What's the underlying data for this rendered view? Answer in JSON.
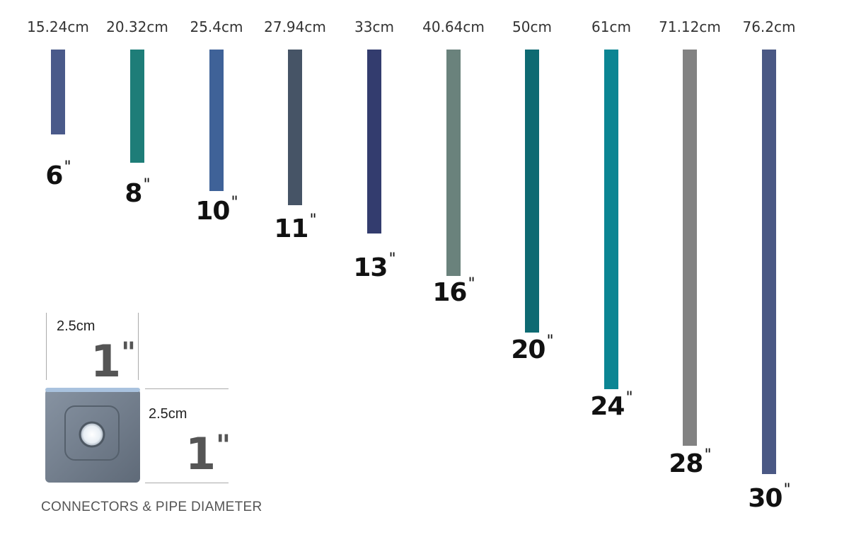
{
  "pipes": [
    {
      "cm": "15.24cm",
      "inches": "6",
      "length_in": 6,
      "color": "#4a5a8a"
    },
    {
      "cm": "20.32cm",
      "inches": "8",
      "length_in": 8,
      "color": "#1e7d78"
    },
    {
      "cm": "25.4cm",
      "inches": "10",
      "length_in": 10,
      "color": "#3f6298"
    },
    {
      "cm": "27.94cm",
      "inches": "11",
      "length_in": 11,
      "color": "#465466"
    },
    {
      "cm": "33cm",
      "inches": "13",
      "length_in": 13,
      "color": "#333c6e"
    },
    {
      "cm": "40.64cm",
      "inches": "16",
      "length_in": 16,
      "color": "#6a827c"
    },
    {
      "cm": "50cm",
      "inches": "20",
      "length_in": 20,
      "color": "#0e6a72"
    },
    {
      "cm": "61cm",
      "inches": "24",
      "length_in": 24,
      "color": "#0b8593"
    },
    {
      "cm": "71.12cm",
      "inches": "28",
      "length_in": 28,
      "color": "#828282"
    },
    {
      "cm": "76.2cm",
      "inches": "30",
      "length_in": 30,
      "color": "#4a5884"
    }
  ],
  "inch_mark": "\"",
  "connector": {
    "width_cm": "2.5cm",
    "width_in": "1",
    "height_cm": "2.5cm",
    "height_in": "1",
    "color": "#6f7b8a"
  },
  "caption": "CONNECTORS & PIPE DIAMETER"
}
